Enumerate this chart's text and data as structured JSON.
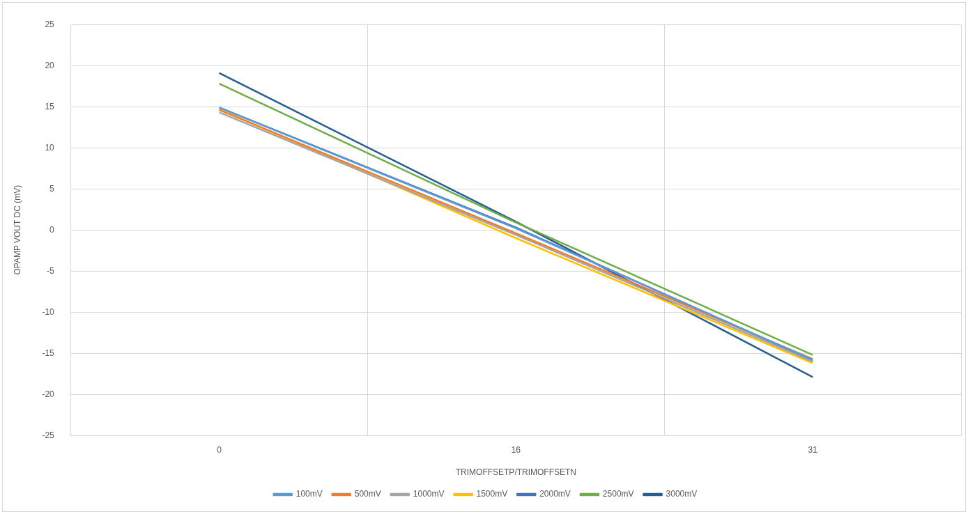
{
  "chart_data": {
    "type": "line",
    "xlabel": "TRIMOFFSETP/TRIMOFFSETN",
    "ylabel": "OPAMP VOUT DC (mV)",
    "categories": [
      "0",
      "16",
      "31"
    ],
    "ylim": [
      -25,
      25
    ],
    "yticks": [
      -25,
      -20,
      -15,
      -10,
      -5,
      0,
      5,
      10,
      15,
      20,
      25
    ],
    "grid": true,
    "legend": "bottom",
    "marker": "none",
    "line_style": "solid",
    "series": [
      {
        "name": "100mV",
        "color": "#5b9bd5",
        "values": [
          14.9,
          0.2,
          -15.8
        ]
      },
      {
        "name": "500mV",
        "color": "#ed7d31",
        "values": [
          14.6,
          -0.4,
          -15.7
        ]
      },
      {
        "name": "1000mV",
        "color": "#a5a5a5",
        "values": [
          14.3,
          -0.6,
          -16.0
        ]
      },
      {
        "name": "1500mV",
        "color": "#ffc000",
        "values": [
          14.7,
          -1.0,
          -16.2
        ]
      },
      {
        "name": "2000mV",
        "color": "#4472c4",
        "values": [
          14.9,
          0.3,
          -15.9
        ]
      },
      {
        "name": "2500mV",
        "color": "#70ad47",
        "values": [
          17.8,
          0.9,
          -15.2
        ]
      },
      {
        "name": "3000mV",
        "color": "#255e91",
        "values": [
          19.1,
          1.0,
          -17.9
        ]
      }
    ]
  }
}
